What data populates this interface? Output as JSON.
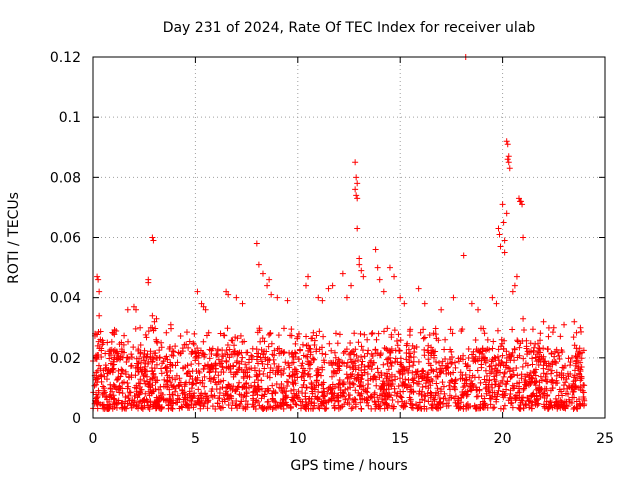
{
  "chart_data": {
    "type": "scatter",
    "title": "Day 231 of 2024, Rate Of TEC Index for receiver ulab",
    "xlabel": "GPS time / hours",
    "ylabel": "ROTI / TECUs",
    "xlim": [
      0,
      25
    ],
    "ylim": [
      0,
      0.12
    ],
    "x_ticks": [
      0,
      5,
      10,
      15,
      20,
      25
    ],
    "x_tick_labels": [
      "0",
      "5",
      "10",
      "15",
      "20",
      "25"
    ],
    "y_ticks": [
      0,
      0.02,
      0.04,
      0.06,
      0.08,
      0.1,
      0.12
    ],
    "y_tick_labels": [
      "0",
      "0.02",
      "0.04",
      "0.06",
      "0.08",
      "0.1",
      "0.12"
    ],
    "grid": true,
    "marker": "+",
    "series_color": "#ff0000",
    "series": [
      {
        "name": "ROTI",
        "background_band": {
          "x_range": [
            0,
            24
          ],
          "typical_y_range": [
            0.003,
            0.03
          ],
          "note": "dense cloud of ROTI samples across the full day"
        },
        "points": [
          [
            0.2,
            0.047
          ],
          [
            0.25,
            0.046
          ],
          [
            0.3,
            0.042
          ],
          [
            0.3,
            0.034
          ],
          [
            0.1,
            0.028
          ],
          [
            1.7,
            0.036
          ],
          [
            2.0,
            0.037
          ],
          [
            2.1,
            0.036
          ],
          [
            2.7,
            0.046
          ],
          [
            2.7,
            0.045
          ],
          [
            2.9,
            0.06
          ],
          [
            2.95,
            0.059
          ],
          [
            2.9,
            0.034
          ],
          [
            3.0,
            0.032
          ],
          [
            3.1,
            0.033
          ],
          [
            3.8,
            0.031
          ],
          [
            5.1,
            0.042
          ],
          [
            5.3,
            0.038
          ],
          [
            5.4,
            0.037
          ],
          [
            5.5,
            0.036
          ],
          [
            6.5,
            0.042
          ],
          [
            6.6,
            0.041
          ],
          [
            7.0,
            0.04
          ],
          [
            7.3,
            0.038
          ],
          [
            8.0,
            0.058
          ],
          [
            8.1,
            0.051
          ],
          [
            8.3,
            0.048
          ],
          [
            8.5,
            0.044
          ],
          [
            8.7,
            0.041
          ],
          [
            8.6,
            0.046
          ],
          [
            9.0,
            0.04
          ],
          [
            9.5,
            0.039
          ],
          [
            10.4,
            0.044
          ],
          [
            10.5,
            0.047
          ],
          [
            11.0,
            0.04
          ],
          [
            11.2,
            0.039
          ],
          [
            11.5,
            0.043
          ],
          [
            11.7,
            0.044
          ],
          [
            12.2,
            0.048
          ],
          [
            12.4,
            0.04
          ],
          [
            12.8,
            0.085
          ],
          [
            12.85,
            0.08
          ],
          [
            12.9,
            0.078
          ],
          [
            12.8,
            0.076
          ],
          [
            12.85,
            0.074
          ],
          [
            12.9,
            0.073
          ],
          [
            12.9,
            0.063
          ],
          [
            13.0,
            0.053
          ],
          [
            13.0,
            0.051
          ],
          [
            13.1,
            0.049
          ],
          [
            13.2,
            0.047
          ],
          [
            12.6,
            0.044
          ],
          [
            13.8,
            0.056
          ],
          [
            13.9,
            0.05
          ],
          [
            14.0,
            0.046
          ],
          [
            14.2,
            0.042
          ],
          [
            14.5,
            0.05
          ],
          [
            14.7,
            0.047
          ],
          [
            15.0,
            0.04
          ],
          [
            15.2,
            0.038
          ],
          [
            15.9,
            0.043
          ],
          [
            16.2,
            0.038
          ],
          [
            17.0,
            0.036
          ],
          [
            17.6,
            0.04
          ],
          [
            18.1,
            0.054
          ],
          [
            18.2,
            0.12
          ],
          [
            18.5,
            0.038
          ],
          [
            18.8,
            0.036
          ],
          [
            19.5,
            0.04
          ],
          [
            19.7,
            0.038
          ],
          [
            19.8,
            0.063
          ],
          [
            19.85,
            0.061
          ],
          [
            19.9,
            0.057
          ],
          [
            20.0,
            0.071
          ],
          [
            20.05,
            0.065
          ],
          [
            20.1,
            0.059
          ],
          [
            20.2,
            0.068
          ],
          [
            20.1,
            0.055
          ],
          [
            20.2,
            0.092
          ],
          [
            20.25,
            0.091
          ],
          [
            20.3,
            0.087
          ],
          [
            20.25,
            0.086
          ],
          [
            20.3,
            0.085
          ],
          [
            20.35,
            0.083
          ],
          [
            20.8,
            0.073
          ],
          [
            20.85,
            0.072
          ],
          [
            20.9,
            0.072
          ],
          [
            20.95,
            0.071
          ],
          [
            21.0,
            0.06
          ],
          [
            20.7,
            0.047
          ],
          [
            20.6,
            0.044
          ],
          [
            20.5,
            0.042
          ],
          [
            21.0,
            0.033
          ],
          [
            22.0,
            0.032
          ],
          [
            22.5,
            0.03
          ],
          [
            23.0,
            0.031
          ],
          [
            23.5,
            0.032
          ],
          [
            23.8,
            0.03
          ]
        ]
      }
    ]
  }
}
